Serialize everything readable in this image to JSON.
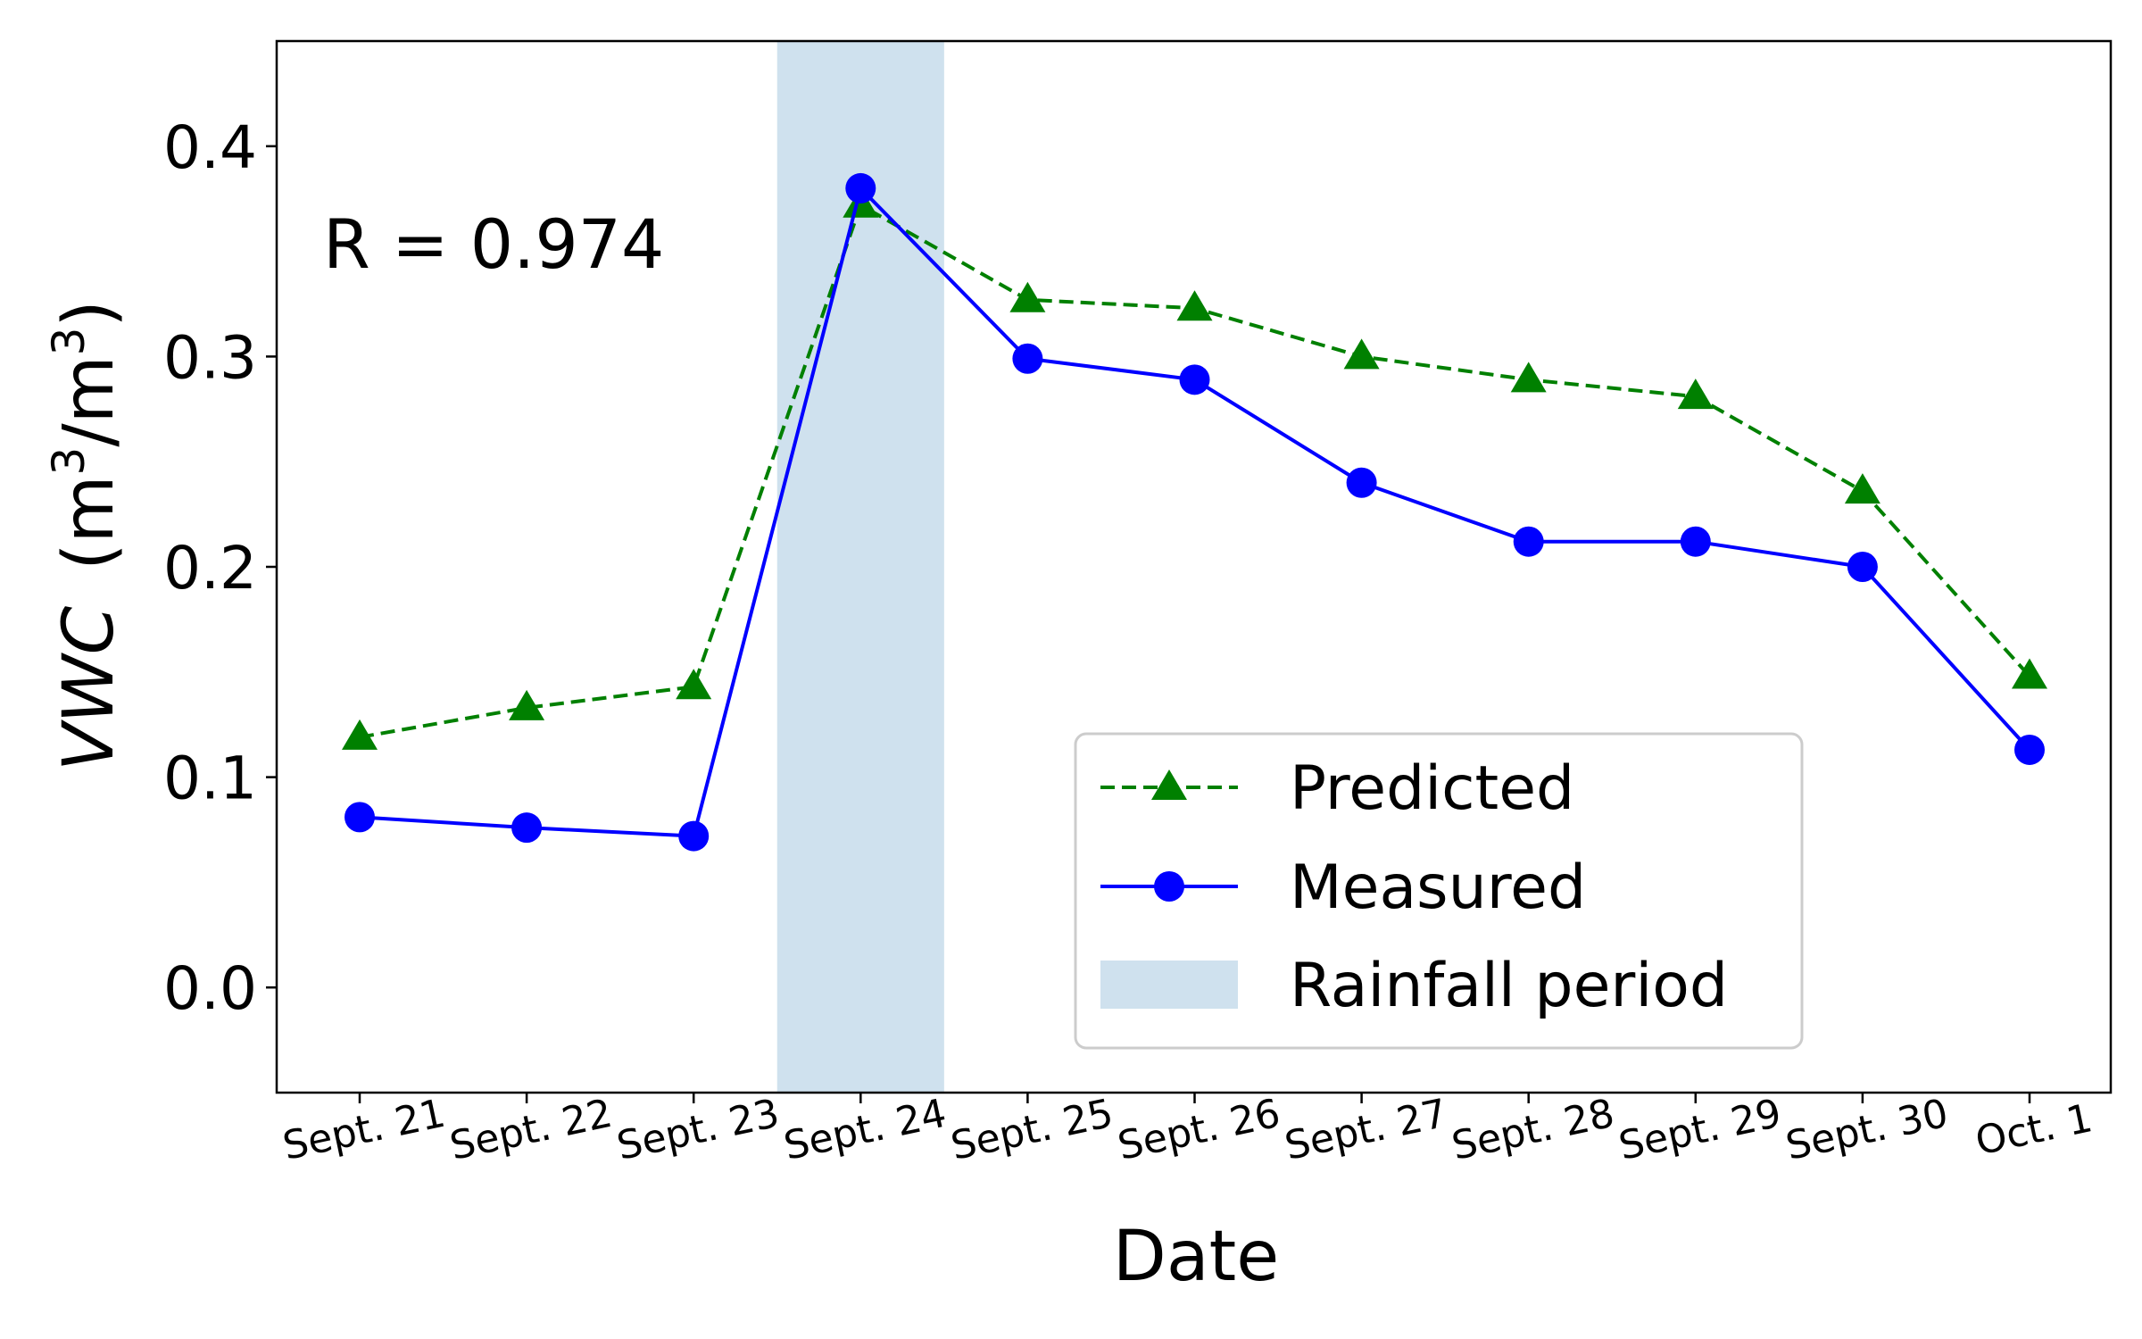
{
  "chart_data": {
    "type": "line",
    "title": "",
    "xlabel": "Date",
    "ylabel": {
      "italic": "VWC",
      "units": "(m³/m³)",
      "unit_base": "m",
      "unit_exp": "3",
      "unit_sep": "/"
    },
    "ylim": [
      -0.05,
      0.45
    ],
    "yticks": [
      "0.0",
      "0.1",
      "0.2",
      "0.3",
      "0.4"
    ],
    "ytick_values": [
      0.0,
      0.1,
      0.2,
      0.3,
      0.4
    ],
    "categories": [
      "Sept. 21",
      "Sept. 22",
      "Sept. 23",
      "Sept. 24",
      "Sept. 25",
      "Sept. 26",
      "Sept. 27",
      "Sept. 28",
      "Sept. 29",
      "Sept. 30",
      "Oct. 1"
    ],
    "series": [
      {
        "name": "Predicted",
        "values": [
          0.119,
          0.133,
          0.143,
          0.372,
          0.327,
          0.323,
          0.3,
          0.289,
          0.281,
          0.236,
          0.148
        ],
        "color": "#008000",
        "marker": "triangle",
        "linestyle": "dashed"
      },
      {
        "name": "Measured",
        "values": [
          0.081,
          0.076,
          0.072,
          0.38,
          0.299,
          0.289,
          0.24,
          0.212,
          0.212,
          0.2,
          0.113
        ],
        "color": "#0000ff",
        "marker": "circle",
        "linestyle": "solid"
      }
    ],
    "shaded_regions": [
      {
        "name": "Rainfall period",
        "x_start": 2.5,
        "x_end": 3.5,
        "color": "#cfe1ee"
      }
    ],
    "annotations": [
      {
        "text": "R = 0.974"
      }
    ],
    "legend": {
      "position": "lower-right",
      "entries": [
        "Predicted",
        "Measured",
        "Rainfall period"
      ]
    },
    "grid": false
  }
}
